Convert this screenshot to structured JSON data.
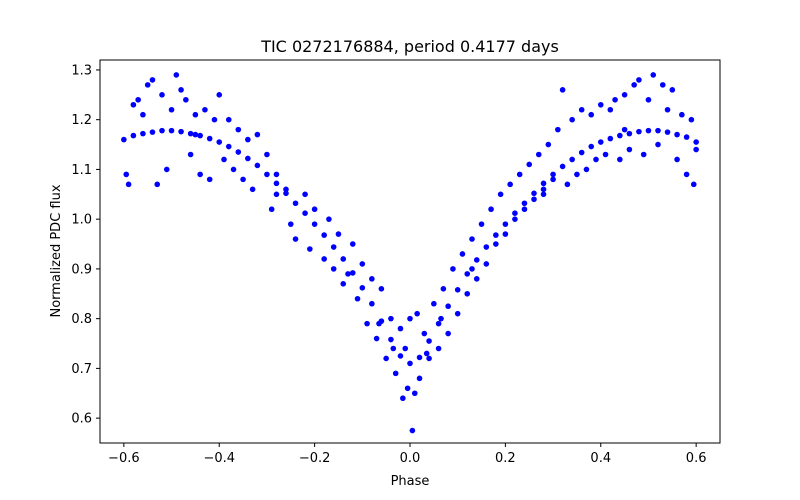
{
  "chart_data": {
    "type": "scatter",
    "title": "TIC 0272176884, period 0.4177 days",
    "xlabel": "Phase",
    "ylabel": "Normalized PDC flux",
    "xlim": [
      -0.65,
      0.65
    ],
    "ylim": [
      0.55,
      1.32
    ],
    "xticks": [
      -0.6,
      -0.4,
      -0.2,
      0.0,
      0.2,
      0.4,
      0.6
    ],
    "xtick_labels": [
      "−0.6",
      "−0.4",
      "−0.2",
      "0.0",
      "0.2",
      "0.4",
      "0.6"
    ],
    "yticks": [
      0.6,
      0.7,
      0.8,
      0.9,
      1.0,
      1.1,
      1.2,
      1.3
    ],
    "ytick_labels": [
      "0.6",
      "0.7",
      "0.8",
      "0.9",
      "1.0",
      "1.1",
      "1.2",
      "1.3"
    ],
    "grid": false,
    "marker_color": "#0000ff",
    "series": [
      {
        "points": [
          [
            -0.6,
            1.16
          ],
          [
            -0.58,
            1.168
          ],
          [
            -0.56,
            1.172
          ],
          [
            -0.54,
            1.175
          ],
          [
            -0.52,
            1.178
          ],
          [
            -0.5,
            1.178
          ],
          [
            -0.48,
            1.176
          ],
          [
            -0.46,
            1.172
          ],
          [
            -0.44,
            1.168
          ],
          [
            -0.42,
            1.162
          ],
          [
            -0.4,
            1.155
          ],
          [
            -0.38,
            1.146
          ],
          [
            -0.36,
            1.135
          ],
          [
            -0.34,
            1.122
          ],
          [
            -0.32,
            1.108
          ],
          [
            -0.3,
            1.09
          ],
          [
            -0.28,
            1.072
          ],
          [
            -0.26,
            1.052
          ],
          [
            -0.24,
            1.032
          ],
          [
            -0.22,
            1.012
          ],
          [
            -0.2,
            0.99
          ],
          [
            -0.18,
            0.968
          ],
          [
            -0.16,
            0.944
          ],
          [
            -0.14,
            0.92
          ],
          [
            -0.12,
            0.892
          ],
          [
            -0.1,
            0.862
          ],
          [
            -0.08,
            0.83
          ],
          [
            -0.06,
            0.795
          ],
          [
            -0.04,
            0.758
          ],
          [
            -0.02,
            0.725
          ],
          [
            0.0,
            0.71
          ],
          [
            0.02,
            0.722
          ],
          [
            0.04,
            0.755
          ],
          [
            0.06,
            0.79
          ],
          [
            0.08,
            0.825
          ],
          [
            0.1,
            0.858
          ],
          [
            0.12,
            0.89
          ],
          [
            0.14,
            0.918
          ],
          [
            0.16,
            0.944
          ],
          [
            0.18,
            0.968
          ],
          [
            0.2,
            0.99
          ],
          [
            0.22,
            1.012
          ],
          [
            0.24,
            1.032
          ],
          [
            0.26,
            1.052
          ],
          [
            0.28,
            1.072
          ],
          [
            0.3,
            1.09
          ],
          [
            0.32,
            1.106
          ],
          [
            0.34,
            1.12
          ],
          [
            0.36,
            1.134
          ],
          [
            0.38,
            1.146
          ],
          [
            0.4,
            1.155
          ],
          [
            0.42,
            1.162
          ],
          [
            0.44,
            1.168
          ],
          [
            0.46,
            1.172
          ],
          [
            0.48,
            1.176
          ],
          [
            0.5,
            1.178
          ],
          [
            0.52,
            1.178
          ],
          [
            0.54,
            1.175
          ],
          [
            0.56,
            1.17
          ],
          [
            0.58,
            1.165
          ],
          [
            0.6,
            1.155
          ],
          [
            -0.595,
            1.09
          ],
          [
            -0.59,
            1.07
          ],
          [
            -0.58,
            1.23
          ],
          [
            -0.57,
            1.24
          ],
          [
            -0.56,
            1.21
          ],
          [
            -0.55,
            1.27
          ],
          [
            -0.54,
            1.28
          ],
          [
            -0.53,
            1.07
          ],
          [
            -0.52,
            1.25
          ],
          [
            -0.51,
            1.1
          ],
          [
            -0.5,
            1.22
          ],
          [
            -0.49,
            1.29
          ],
          [
            -0.48,
            1.26
          ],
          [
            -0.47,
            1.24
          ],
          [
            -0.46,
            1.13
          ],
          [
            -0.45,
            1.21
          ],
          [
            -0.44,
            1.09
          ],
          [
            -0.43,
            1.22
          ],
          [
            -0.42,
            1.08
          ],
          [
            -0.41,
            1.2
          ],
          [
            -0.4,
            1.25
          ],
          [
            -0.39,
            1.12
          ],
          [
            -0.38,
            1.2
          ],
          [
            -0.37,
            1.1
          ],
          [
            -0.36,
            1.18
          ],
          [
            -0.35,
            1.08
          ],
          [
            -0.34,
            1.16
          ],
          [
            -0.33,
            1.06
          ],
          [
            -0.32,
            1.17
          ],
          [
            -0.3,
            1.13
          ],
          [
            -0.29,
            1.02
          ],
          [
            -0.28,
            1.09
          ],
          [
            -0.26,
            1.06
          ],
          [
            -0.25,
            0.99
          ],
          [
            -0.24,
            0.96
          ],
          [
            -0.22,
            1.05
          ],
          [
            -0.21,
            0.94
          ],
          [
            -0.2,
            1.02
          ],
          [
            -0.18,
            0.92
          ],
          [
            -0.17,
            1.0
          ],
          [
            -0.16,
            0.9
          ],
          [
            -0.15,
            0.97
          ],
          [
            -0.14,
            0.87
          ],
          [
            -0.12,
            0.95
          ],
          [
            -0.11,
            0.84
          ],
          [
            -0.1,
            0.91
          ],
          [
            -0.09,
            0.79
          ],
          [
            -0.08,
            0.88
          ],
          [
            -0.07,
            0.76
          ],
          [
            -0.06,
            0.86
          ],
          [
            -0.05,
            0.72
          ],
          [
            -0.04,
            0.8
          ],
          [
            -0.03,
            0.69
          ],
          [
            -0.02,
            0.78
          ],
          [
            -0.015,
            0.64
          ],
          [
            -0.01,
            0.74
          ],
          [
            -0.005,
            0.66
          ],
          [
            0.0,
            0.8
          ],
          [
            0.005,
            0.575
          ],
          [
            0.01,
            0.65
          ],
          [
            0.015,
            0.81
          ],
          [
            0.02,
            0.68
          ],
          [
            0.03,
            0.77
          ],
          [
            0.04,
            0.72
          ],
          [
            0.05,
            0.83
          ],
          [
            0.06,
            0.74
          ],
          [
            0.07,
            0.86
          ],
          [
            0.08,
            0.77
          ],
          [
            0.09,
            0.9
          ],
          [
            0.1,
            0.81
          ],
          [
            0.11,
            0.93
          ],
          [
            0.12,
            0.85
          ],
          [
            0.13,
            0.96
          ],
          [
            0.14,
            0.88
          ],
          [
            0.15,
            0.99
          ],
          [
            0.16,
            0.91
          ],
          [
            0.17,
            1.02
          ],
          [
            0.18,
            0.95
          ],
          [
            0.19,
            1.05
          ],
          [
            0.2,
            0.97
          ],
          [
            0.21,
            1.07
          ],
          [
            0.22,
            1.0
          ],
          [
            0.23,
            1.09
          ],
          [
            0.24,
            1.02
          ],
          [
            0.25,
            1.11
          ],
          [
            0.26,
            1.04
          ],
          [
            0.27,
            1.13
          ],
          [
            0.28,
            1.05
          ],
          [
            0.29,
            1.15
          ],
          [
            0.3,
            1.08
          ],
          [
            0.31,
            1.18
          ],
          [
            0.32,
            1.26
          ],
          [
            0.33,
            1.07
          ],
          [
            0.34,
            1.2
          ],
          [
            0.35,
            1.09
          ],
          [
            0.36,
            1.22
          ],
          [
            0.37,
            1.1
          ],
          [
            0.38,
            1.21
          ],
          [
            0.39,
            1.12
          ],
          [
            0.4,
            1.23
          ],
          [
            0.41,
            1.13
          ],
          [
            0.42,
            1.22
          ],
          [
            0.43,
            1.24
          ],
          [
            0.44,
            1.12
          ],
          [
            0.45,
            1.25
          ],
          [
            0.46,
            1.14
          ],
          [
            0.47,
            1.27
          ],
          [
            0.48,
            1.28
          ],
          [
            0.49,
            1.13
          ],
          [
            0.5,
            1.24
          ],
          [
            0.51,
            1.29
          ],
          [
            0.52,
            1.15
          ],
          [
            0.53,
            1.27
          ],
          [
            0.54,
            1.22
          ],
          [
            0.55,
            1.26
          ],
          [
            0.56,
            1.12
          ],
          [
            0.57,
            1.21
          ],
          [
            0.58,
            1.09
          ],
          [
            0.59,
            1.2
          ],
          [
            0.595,
            1.07
          ],
          [
            0.6,
            1.14
          ],
          [
            -0.45,
            1.17
          ],
          [
            0.45,
            1.18
          ],
          [
            -0.28,
            1.05
          ],
          [
            0.28,
            1.06
          ],
          [
            -0.13,
            0.89
          ],
          [
            0.13,
            0.9
          ],
          [
            -0.035,
            0.74
          ],
          [
            0.035,
            0.73
          ],
          [
            -0.065,
            0.79
          ],
          [
            0.065,
            0.8
          ]
        ]
      }
    ]
  }
}
